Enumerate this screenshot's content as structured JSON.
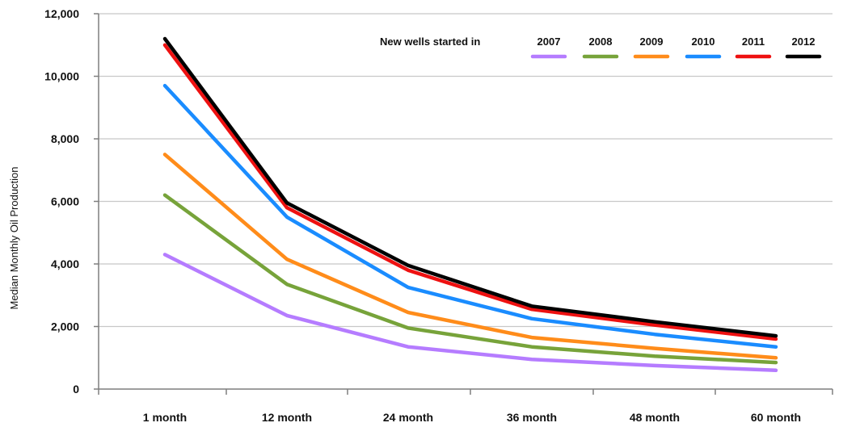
{
  "chart_data": {
    "type": "line",
    "title": "",
    "xlabel": "",
    "ylabel": "Median Monthly Oil Production",
    "categories": [
      "1 month",
      "12 month",
      "24 month",
      "36 month",
      "48 month",
      "60 month"
    ],
    "y_ticks": [
      "0",
      "2,000",
      "4,000",
      "6,000",
      "8,000",
      "10,000",
      "12,000"
    ],
    "ylim": [
      0,
      12000
    ],
    "grid": true,
    "legend_title": "New wells started in",
    "legend_position": "top-right",
    "series": [
      {
        "name": "2007",
        "color": "#b57cff",
        "values": [
          4300,
          2350,
          1350,
          950,
          750,
          600
        ]
      },
      {
        "name": "2008",
        "color": "#77a33a",
        "values": [
          6200,
          3350,
          1950,
          1350,
          1050,
          850
        ]
      },
      {
        "name": "2009",
        "color": "#ff8c1a",
        "values": [
          7500,
          4150,
          2450,
          1650,
          1300,
          1000
        ]
      },
      {
        "name": "2010",
        "color": "#1a8cff",
        "values": [
          9700,
          5500,
          3250,
          2250,
          1750,
          1350
        ]
      },
      {
        "name": "2011",
        "color": "#ee1111",
        "values": [
          11000,
          5800,
          3800,
          2550,
          2050,
          1600
        ]
      },
      {
        "name": "2012",
        "color": "#000000",
        "values": [
          11200,
          5950,
          3950,
          2650,
          2150,
          1700
        ]
      }
    ]
  }
}
